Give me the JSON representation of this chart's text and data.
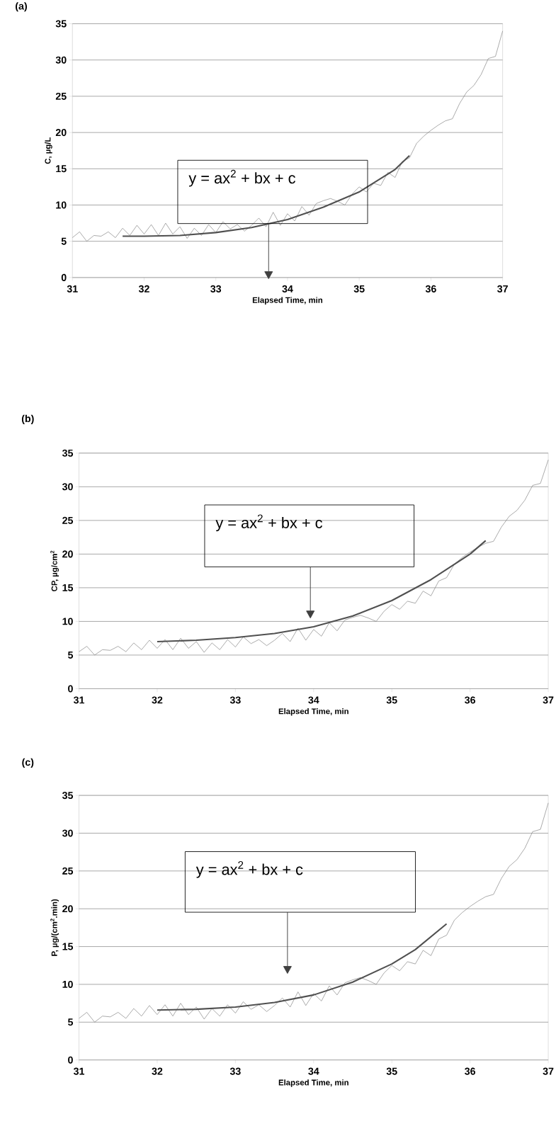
{
  "chart_data": [
    {
      "type": "line",
      "title": "(a)",
      "xlabel": "Elapsed Time, min",
      "ylabel": "C, µg/L",
      "xlim": [
        31,
        37
      ],
      "ylim": [
        0,
        35
      ],
      "xticks": [
        31,
        32,
        33,
        34,
        35,
        36,
        37
      ],
      "yticks": [
        0,
        5,
        10,
        15,
        20,
        25,
        30,
        35
      ],
      "grid": "y",
      "marker": "none",
      "line_style": "solid",
      "series": [
        {
          "color": "#808080",
          "x": [
            31.0,
            31.1,
            31.2,
            31.3,
            31.4,
            31.5,
            31.6,
            31.7,
            31.8,
            31.9,
            32.0,
            32.1,
            32.2,
            32.3,
            32.4,
            32.5,
            32.6,
            32.7,
            32.8,
            32.9,
            33.0,
            33.1,
            33.2,
            33.3,
            33.4,
            33.5,
            33.6,
            33.7,
            33.8,
            33.9,
            34.0,
            34.1,
            34.2,
            34.3,
            34.4,
            34.5,
            34.6,
            34.7,
            34.8,
            34.9,
            35.0,
            35.1,
            35.2,
            35.3,
            35.4,
            35.5,
            35.6,
            35.7,
            35.8,
            35.9,
            36.0,
            36.1,
            36.2,
            36.3,
            36.4,
            36.5,
            36.6,
            36.7,
            36.8,
            36.9,
            37.0
          ],
          "values": [
            5.5,
            6.3,
            5.0,
            5.8,
            5.7,
            6.3,
            5.5,
            6.8,
            5.8,
            7.2,
            6.0,
            7.3,
            5.8,
            7.5,
            6.0,
            7.0,
            5.4,
            6.8,
            5.8,
            7.3,
            6.2,
            7.7,
            6.7,
            7.3,
            6.4,
            7.2,
            8.2,
            7.0,
            9.0,
            7.2,
            8.8,
            7.8,
            9.8,
            8.6,
            10.2,
            10.6,
            10.9,
            10.5,
            10.0,
            11.5,
            12.5,
            11.8,
            13.0,
            12.7,
            14.5,
            13.8,
            16.0,
            16.5,
            18.5,
            19.5,
            20.3,
            21.0,
            21.6,
            21.9,
            24.0,
            25.6,
            26.5,
            28.0,
            30.2,
            30.5,
            34.0
          ]
        },
        {
          "color": "#505050",
          "x": [
            31.7,
            32.0,
            32.5,
            33.0,
            33.5,
            34.0,
            34.5,
            35.0,
            35.5,
            35.7
          ],
          "values": [
            5.7,
            5.7,
            5.8,
            6.2,
            6.9,
            8.0,
            9.7,
            11.8,
            14.9,
            16.8
          ]
        }
      ],
      "annotations": [
        "y = ax$^{2}$ + bx + c"
      ]
    },
    {
      "type": "line",
      "title": "(b)",
      "xlabel": "Elapsed Time, min",
      "ylabel": "CP, µg/cm$^{2}$",
      "xlim": [
        31,
        37
      ],
      "ylim": [
        0,
        35
      ],
      "xticks": [
        31,
        32,
        33,
        34,
        35,
        36,
        37
      ],
      "yticks": [
        0,
        5,
        10,
        15,
        20,
        25,
        30,
        35
      ],
      "grid": "y",
      "marker": "none",
      "line_style": "solid",
      "series": [
        {
          "color": "#808080",
          "x": [
            31.0,
            31.1,
            31.2,
            31.3,
            31.4,
            31.5,
            31.6,
            31.7,
            31.8,
            31.9,
            32.0,
            32.1,
            32.2,
            32.3,
            32.4,
            32.5,
            32.6,
            32.7,
            32.8,
            32.9,
            33.0,
            33.1,
            33.2,
            33.3,
            33.4,
            33.5,
            33.6,
            33.7,
            33.8,
            33.9,
            34.0,
            34.1,
            34.2,
            34.3,
            34.4,
            34.5,
            34.6,
            34.7,
            34.8,
            34.9,
            35.0,
            35.1,
            35.2,
            35.3,
            35.4,
            35.5,
            35.6,
            35.7,
            35.8,
            35.9,
            36.0,
            36.1,
            36.2,
            36.3,
            36.4,
            36.5,
            36.6,
            36.7,
            36.8,
            36.9,
            37.0
          ],
          "values": [
            5.5,
            6.3,
            5.0,
            5.8,
            5.7,
            6.3,
            5.5,
            6.8,
            5.8,
            7.2,
            6.0,
            7.3,
            5.8,
            7.5,
            6.0,
            7.0,
            5.4,
            6.8,
            5.8,
            7.3,
            6.2,
            7.7,
            6.7,
            7.3,
            6.4,
            7.2,
            8.2,
            7.0,
            9.0,
            7.2,
            8.8,
            7.8,
            9.8,
            8.6,
            10.2,
            10.6,
            10.9,
            10.5,
            10.0,
            11.5,
            12.5,
            11.8,
            13.0,
            12.7,
            14.5,
            13.8,
            16.0,
            16.5,
            18.5,
            19.5,
            20.3,
            21.0,
            21.6,
            21.9,
            24.0,
            25.6,
            26.5,
            28.0,
            30.2,
            30.5,
            34.0
          ]
        },
        {
          "color": "#505050",
          "x": [
            32.0,
            32.5,
            33.0,
            33.5,
            34.0,
            34.5,
            35.0,
            35.5,
            36.0,
            36.2
          ],
          "values": [
            7.0,
            7.2,
            7.6,
            8.2,
            9.2,
            10.8,
            13.1,
            16.2,
            20.0,
            22.0
          ]
        }
      ],
      "annotations": [
        "y = ax$^{2}$ + bx + c"
      ]
    },
    {
      "type": "line",
      "title": "(c)",
      "xlabel": "Elapsed Time, min",
      "ylabel": "P, µg/(cm$^{2}$.min)",
      "xlim": [
        31,
        37
      ],
      "ylim": [
        0,
        35
      ],
      "xticks": [
        31,
        32,
        33,
        34,
        35,
        36,
        37
      ],
      "yticks": [
        0,
        5,
        10,
        15,
        20,
        25,
        30,
        35
      ],
      "grid": "y",
      "marker": "none",
      "line_style": "solid",
      "series": [
        {
          "color": "#808080",
          "x": [
            31.0,
            31.1,
            31.2,
            31.3,
            31.4,
            31.5,
            31.6,
            31.7,
            31.8,
            31.9,
            32.0,
            32.1,
            32.2,
            32.3,
            32.4,
            32.5,
            32.6,
            32.7,
            32.8,
            32.9,
            33.0,
            33.1,
            33.2,
            33.3,
            33.4,
            33.5,
            33.6,
            33.7,
            33.8,
            33.9,
            34.0,
            34.1,
            34.2,
            34.3,
            34.4,
            34.5,
            34.6,
            34.7,
            34.8,
            34.9,
            35.0,
            35.1,
            35.2,
            35.3,
            35.4,
            35.5,
            35.6,
            35.7,
            35.8,
            35.9,
            36.0,
            36.1,
            36.2,
            36.3,
            36.4,
            36.5,
            36.6,
            36.7,
            36.8,
            36.9,
            37.0
          ],
          "values": [
            5.5,
            6.3,
            5.0,
            5.8,
            5.7,
            6.3,
            5.5,
            6.8,
            5.8,
            7.2,
            6.0,
            7.3,
            5.8,
            7.5,
            6.0,
            7.0,
            5.4,
            6.8,
            5.8,
            7.3,
            6.2,
            7.7,
            6.7,
            7.3,
            6.4,
            7.2,
            8.2,
            7.0,
            9.0,
            7.2,
            8.8,
            7.8,
            9.8,
            8.6,
            10.2,
            10.6,
            10.9,
            10.5,
            10.0,
            11.5,
            12.5,
            11.8,
            13.0,
            12.7,
            14.5,
            13.8,
            16.0,
            16.5,
            18.5,
            19.5,
            20.3,
            21.0,
            21.6,
            21.9,
            24.0,
            25.6,
            26.5,
            28.0,
            30.2,
            30.5,
            34.0
          ]
        },
        {
          "color": "#505050",
          "x": [
            32.0,
            32.5,
            33.0,
            33.5,
            34.0,
            34.5,
            35.0,
            35.3,
            35.7
          ],
          "values": [
            6.6,
            6.7,
            7.0,
            7.6,
            8.6,
            10.3,
            12.7,
            14.6,
            18.0
          ]
        }
      ],
      "annotations": [
        "y = ax$^{2}$ + bx + c"
      ]
    }
  ]
}
